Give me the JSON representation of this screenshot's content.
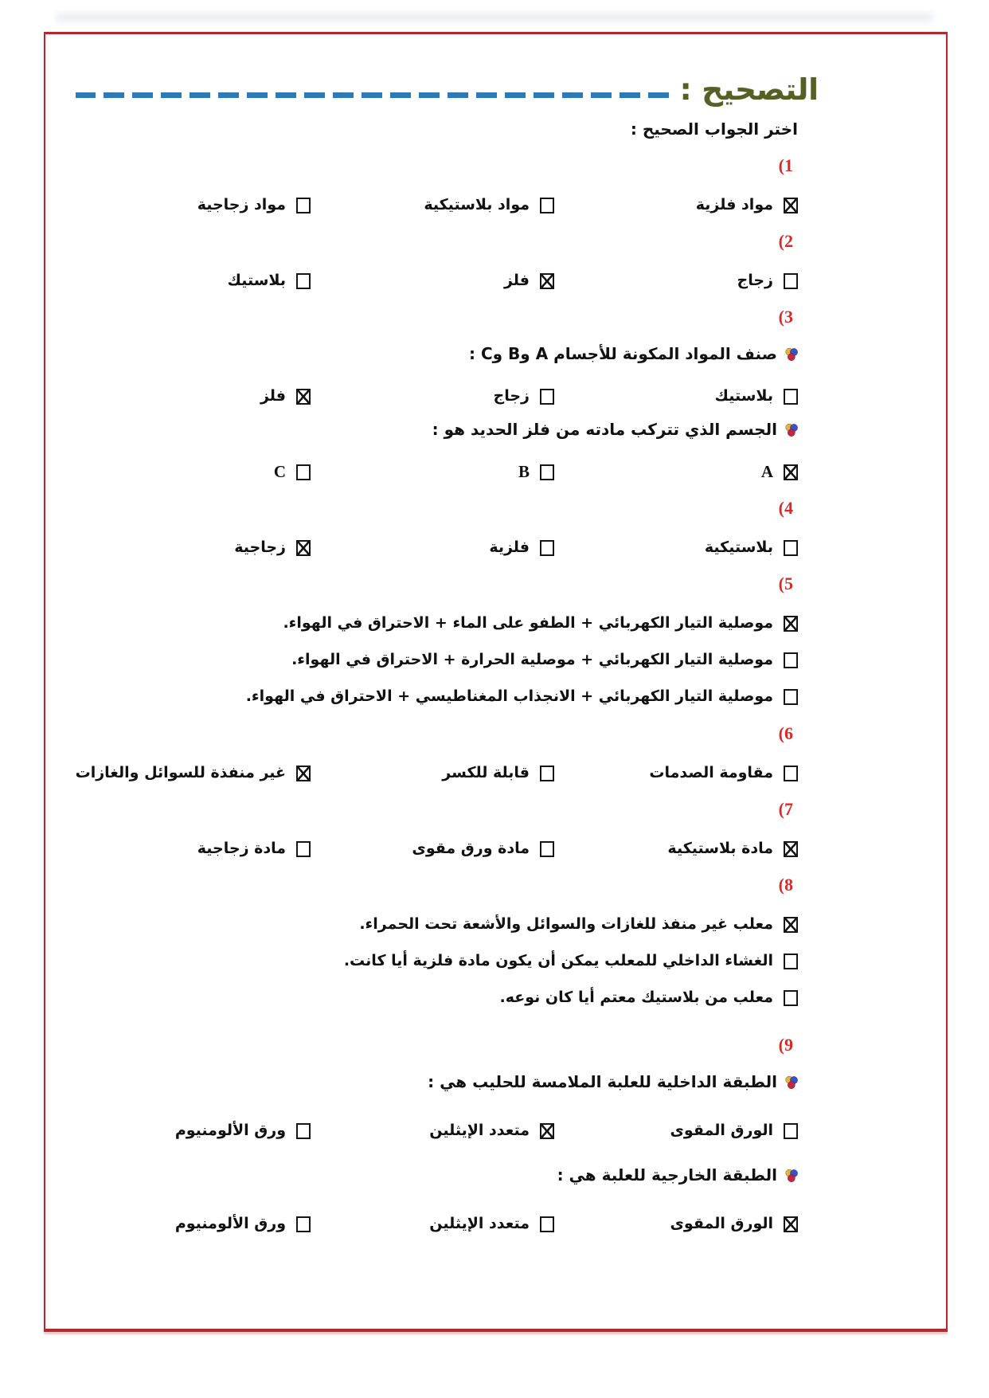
{
  "header": {
    "title": "التصحيح :",
    "instruction": "اختر الجواب الصحيح :"
  },
  "colors": {
    "frame_border": "#b3292d",
    "title_green": "#566026",
    "dash_blue": "#2e79b8",
    "number_red": "#d92a28",
    "text": "#111111"
  },
  "icons": {
    "checked_box": "checkbox-with-x",
    "unchecked_box": "empty-checkbox",
    "bullet": "ornament-clover-multicolor"
  },
  "questions": [
    {
      "number": "(1",
      "rows": [
        {
          "type": "options",
          "layout": "columns",
          "options": [
            {
              "label": "مواد فلزية",
              "checked": true
            },
            {
              "label": "مواد بلاستيكية",
              "checked": false
            },
            {
              "label": "مواد زجاجية",
              "checked": false
            }
          ]
        }
      ]
    },
    {
      "number": "(2",
      "rows": [
        {
          "type": "options",
          "layout": "columns",
          "options": [
            {
              "label": "زجاج",
              "checked": false
            },
            {
              "label": "فلز",
              "checked": true
            },
            {
              "label": "بلاستيك",
              "checked": false
            }
          ]
        }
      ]
    },
    {
      "number": "(3",
      "rows": [
        {
          "type": "subquestion",
          "text": "صنف المواد المكونة للأجسام A وB وC :"
        },
        {
          "type": "options",
          "layout": "columns",
          "options": [
            {
              "label": "بلاستيك",
              "checked": false
            },
            {
              "label": "زجاج",
              "checked": false
            },
            {
              "label": "فلز",
              "checked": true
            }
          ]
        },
        {
          "type": "subquestion",
          "text": "الجسم الذي تتركب مادته من فلز الحديد هو :"
        },
        {
          "type": "options",
          "layout": "columns",
          "options": [
            {
              "label": "A",
              "checked": true
            },
            {
              "label": "B",
              "checked": false
            },
            {
              "label": "C",
              "checked": false
            }
          ]
        }
      ]
    },
    {
      "number": "(4",
      "rows": [
        {
          "type": "options",
          "layout": "columns",
          "options": [
            {
              "label": "بلاستيكية",
              "checked": false
            },
            {
              "label": "فلزية",
              "checked": false
            },
            {
              "label": "زجاجية",
              "checked": true
            }
          ]
        }
      ]
    },
    {
      "number": "(5",
      "rows": [
        {
          "type": "options",
          "layout": "stacked",
          "options": [
            {
              "label": "موصلية التيار الكهربائي + الطفو على الماء + الاحتراق في الهواء.",
              "checked": true
            },
            {
              "label": "موصلية التيار الكهربائي + موصلية الحرارة + الاحتراق في الهواء.",
              "checked": false
            },
            {
              "label": "موصلية التيار الكهربائي + الانجذاب المغناطيسي + الاحتراق في الهواء.",
              "checked": false
            }
          ]
        }
      ]
    },
    {
      "number": "(6",
      "rows": [
        {
          "type": "options",
          "layout": "columns",
          "options": [
            {
              "label": "مقاومة الصدمات",
              "checked": false
            },
            {
              "label": "قابلة للكسر",
              "checked": false
            },
            {
              "label": "غير منفذة للسوائل والغازات",
              "checked": true
            }
          ]
        }
      ]
    },
    {
      "number": "(7",
      "rows": [
        {
          "type": "options",
          "layout": "columns",
          "options": [
            {
              "label": "مادة بلاستيكية",
              "checked": true
            },
            {
              "label": "مادة ورق مقوى",
              "checked": false
            },
            {
              "label": "مادة زجاجية",
              "checked": false
            }
          ]
        }
      ]
    },
    {
      "number": "(8",
      "rows": [
        {
          "type": "options",
          "layout": "stacked",
          "options": [
            {
              "label": "معلب غير منفذ للغازات والسوائل والأشعة تحت الحمراء.",
              "checked": true
            },
            {
              "label": "الغشاء الداخلي للمعلب يمكن أن يكون مادة فلزية أيا كانت.",
              "checked": false
            },
            {
              "label": "معلب من بلاستيك معتم أيا كان نوعه.",
              "checked": false
            }
          ]
        }
      ]
    },
    {
      "number": "(9",
      "rows": [
        {
          "type": "subquestion",
          "text": "الطبقة الداخلية للعلبة الملامسة للحليب هي :"
        },
        {
          "type": "options",
          "layout": "columns",
          "options": [
            {
              "label": "الورق المقوى",
              "checked": false
            },
            {
              "label": "متعدد الإيثلين",
              "checked": true
            },
            {
              "label": "ورق الألومنيوم",
              "checked": false
            }
          ]
        },
        {
          "type": "subquestion",
          "text": "الطبقة الخارجية للعلبة هي :"
        },
        {
          "type": "options",
          "layout": "columns",
          "options": [
            {
              "label": "الورق المقوى",
              "checked": true
            },
            {
              "label": "متعدد الإيثلين",
              "checked": false
            },
            {
              "label": "ورق الألومنيوم",
              "checked": false
            }
          ]
        }
      ]
    }
  ]
}
